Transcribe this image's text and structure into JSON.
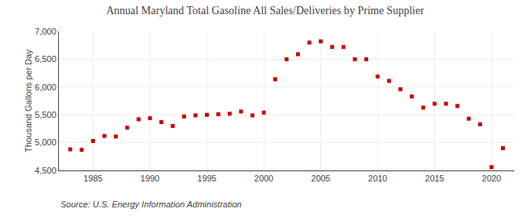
{
  "chart_data": {
    "type": "scatter",
    "title": "Annual Maryland Total Gasoline All Sales/Deliveries by Prime Supplier",
    "ylabel": "Thousand Gallons per Day",
    "annotations": [
      "Source: U.S. Energy Information Administration"
    ],
    "x": [
      1983,
      1984,
      1985,
      1986,
      1987,
      1988,
      1989,
      1990,
      1991,
      1992,
      1993,
      1994,
      1995,
      1996,
      1997,
      1998,
      1999,
      2000,
      2001,
      2002,
      2003,
      2004,
      2005,
      2006,
      2007,
      2008,
      2009,
      2010,
      2011,
      2012,
      2013,
      2014,
      2015,
      2016,
      2017,
      2018,
      2019,
      2020,
      2021
    ],
    "values": [
      4880,
      4870,
      5030,
      5120,
      5110,
      5270,
      5420,
      5440,
      5370,
      5300,
      5470,
      5490,
      5500,
      5510,
      5520,
      5560,
      5490,
      5540,
      6140,
      6500,
      6590,
      6800,
      6820,
      6720,
      6720,
      6500,
      6500,
      6190,
      6110,
      5960,
      5830,
      5630,
      5700,
      5700,
      5660,
      5430,
      5330,
      4560,
      4900
    ],
    "color": "#cc0000",
    "marker": "square",
    "xlim": [
      1982,
      2022
    ],
    "xticks": [
      1985,
      1990,
      1995,
      2000,
      2005,
      2010,
      2015,
      2020
    ],
    "ylim": [
      4500,
      7000
    ],
    "yticks": [
      {
        "value": 4500,
        "label": "4,500"
      },
      {
        "value": 5000,
        "label": "5,000"
      },
      {
        "value": 5500,
        "label": "5,500"
      },
      {
        "value": 6000,
        "label": "6,000"
      },
      {
        "value": 6500,
        "label": "6,500"
      },
      {
        "value": 7000,
        "label": "7,000"
      }
    ],
    "grid": true
  }
}
